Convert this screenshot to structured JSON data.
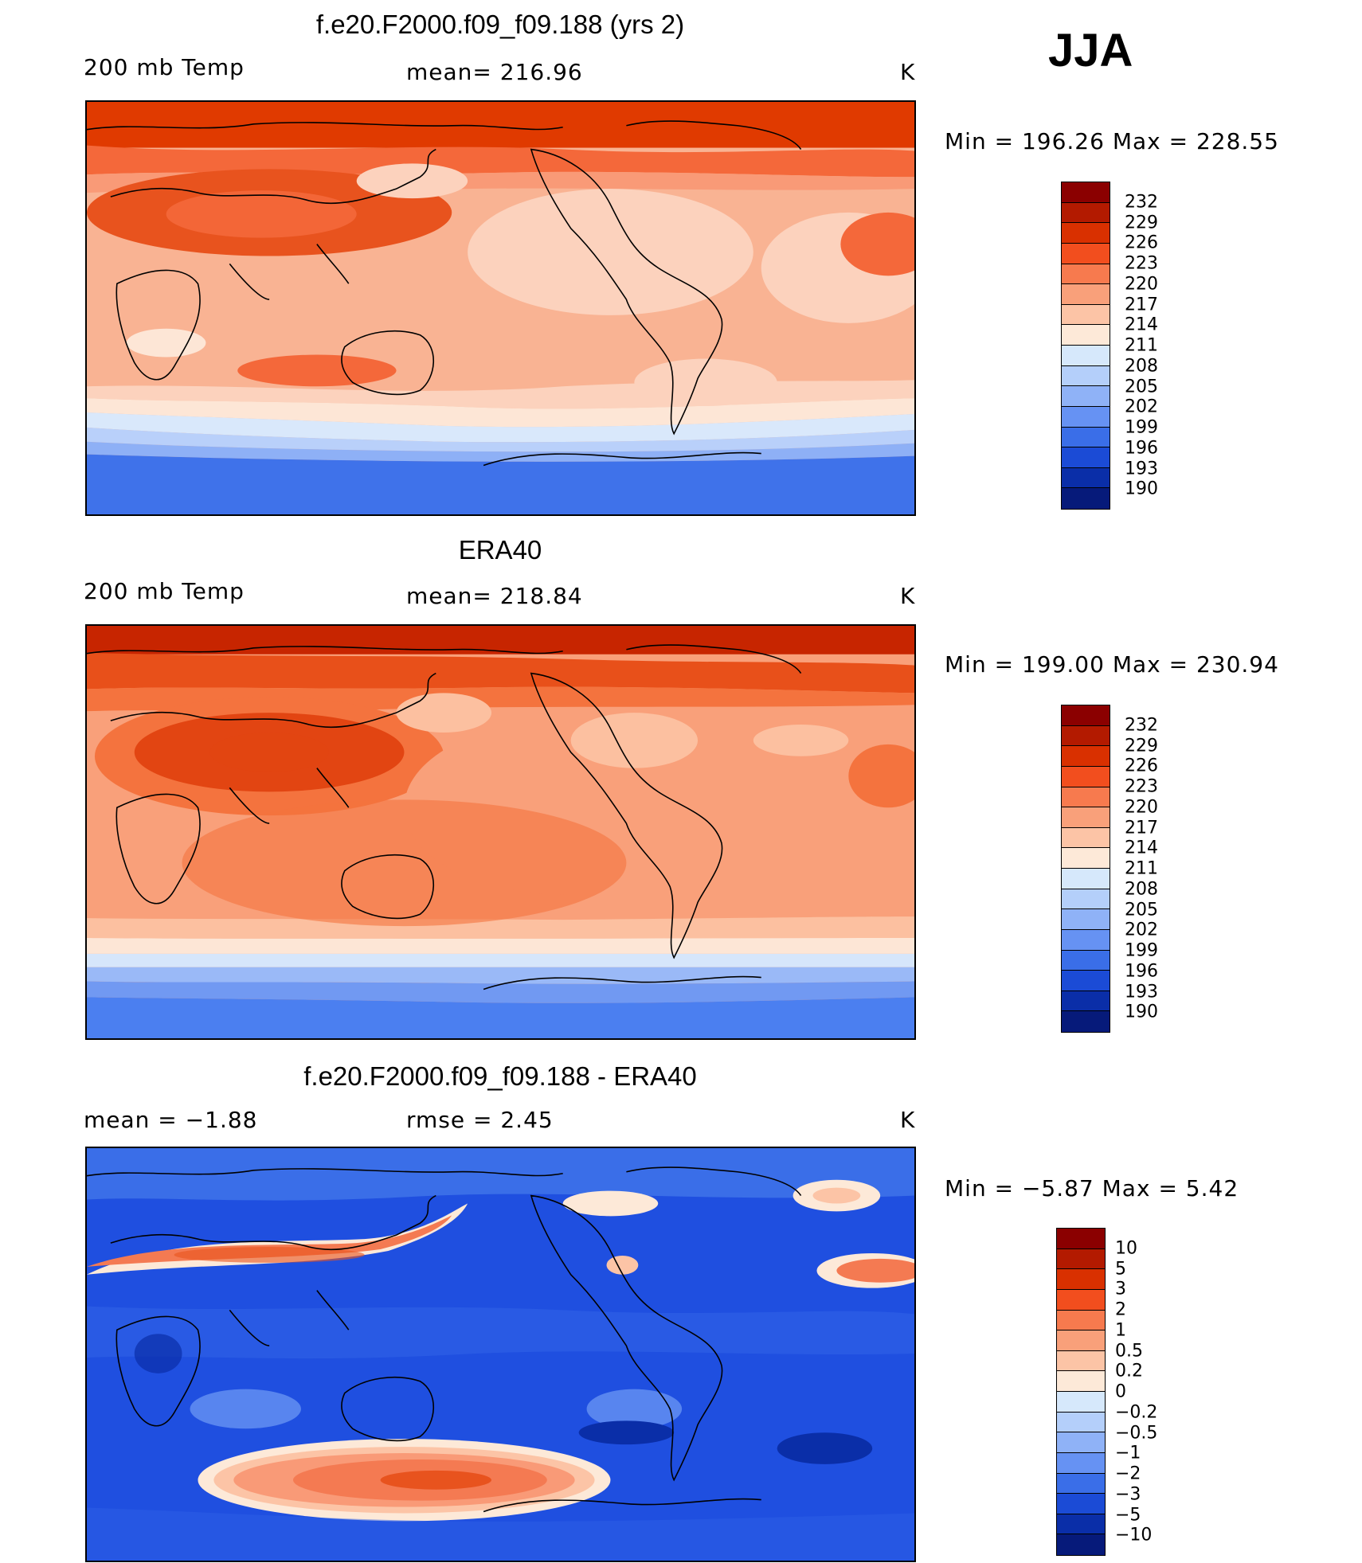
{
  "season": "JJA",
  "panels": [
    {
      "title": "f.e20.F2000.f09_f09.188 (yrs 2)",
      "left": "200 mb Temp",
      "center": "mean= 216.96",
      "right": "K",
      "minmax": "Min = 196.26 Max = 228.55",
      "colorbar": {
        "labels": [
          "232",
          "229",
          "226",
          "223",
          "220",
          "217",
          "214",
          "211",
          "208",
          "205",
          "202",
          "199",
          "196",
          "193",
          "190"
        ],
        "colors": [
          "#8b0000",
          "#b31a00",
          "#d93000",
          "#f24e1e",
          "#f77a4e",
          "#f9a07a",
          "#fcc4a6",
          "#fde9d8",
          "#d6e8fb",
          "#b4cffa",
          "#8fb2f7",
          "#6692f3",
          "#3a6ee8",
          "#1b4bd6",
          "#0a2ea8",
          "#061a7a"
        ]
      },
      "field": {
        "background": "#f9b393",
        "bands": [
          {
            "color": "#e03a00"
          },
          {
            "color": "#f4683a"
          },
          {
            "color": "#f99a77"
          },
          {
            "color": "#f9b393"
          },
          {
            "color": "#fcd2bd"
          },
          {
            "color": "#f9b393"
          },
          {
            "color": "#fde6d6"
          },
          {
            "color": "#d9e8fb"
          },
          {
            "color": "#b9d0fa"
          },
          {
            "color": "#8eb0f6"
          },
          {
            "color": "#3f72ea"
          },
          {
            "color": "#2f5fe8"
          }
        ],
        "blobs": [
          {
            "color": "#e8531e"
          },
          {
            "color": "#e8531e"
          },
          {
            "color": "#fcd2bd"
          },
          {
            "color": "#fde6d6"
          },
          {
            "color": "#f4683a"
          },
          {
            "color": "#f4683a"
          },
          {
            "color": "#fcd2bd"
          },
          {
            "color": "#f4683a"
          }
        ]
      }
    },
    {
      "title": "ERA40",
      "left": "200 mb Temp",
      "center": "mean= 218.84",
      "right": "K",
      "minmax": "Min = 199.00 Max = 230.94",
      "colorbar": {
        "labels": [
          "232",
          "229",
          "226",
          "223",
          "220",
          "217",
          "214",
          "211",
          "208",
          "205",
          "202",
          "199",
          "196",
          "193",
          "190"
        ],
        "colors": [
          "#8b0000",
          "#b31a00",
          "#d93000",
          "#f24e1e",
          "#f77a4e",
          "#f9a07a",
          "#fcc4a6",
          "#fde9d8",
          "#d6e8fb",
          "#b4cffa",
          "#8fb2f7",
          "#6692f3",
          "#3a6ee8",
          "#1b4bd6",
          "#0a2ea8",
          "#061a7a"
        ]
      },
      "field": {
        "background": "#f9a07a",
        "bands": [
          {
            "color": "#c72500"
          },
          {
            "color": "#e8501a"
          },
          {
            "color": "#f4733e"
          },
          {
            "color": "#f9a07a"
          },
          {
            "color": "#f9a07a"
          },
          {
            "color": "#fcc0a0"
          },
          {
            "color": "#fde6d6"
          },
          {
            "color": "#d6e6fb"
          },
          {
            "color": "#9ab9f7"
          },
          {
            "color": "#7199f2"
          },
          {
            "color": "#4b7ff0"
          },
          {
            "color": "#4b7ff0"
          }
        ],
        "blobs": [
          {
            "color": "#e24512"
          },
          {
            "color": "#f4733e"
          },
          {
            "color": "#fcc0a0"
          },
          {
            "color": "#f4733e"
          },
          {
            "color": "#fcc0a0"
          },
          {
            "color": "#f9a07a"
          },
          {
            "color": "#f4733e"
          },
          {
            "color": "#fcc0a0"
          }
        ]
      }
    },
    {
      "title": "f.e20.F2000.f09_f09.188 - ERA40",
      "left": "mean = −1.88",
      "center": "rmse = 2.45",
      "right": "K",
      "minmax": "Min = −5.87 Max = 5.42",
      "colorbar": {
        "labels": [
          "10",
          "5",
          "3",
          "2",
          "1",
          "0.5",
          "0.2",
          "0",
          "−0.2",
          "−0.5",
          "−1",
          "−2",
          "−3",
          "−5",
          "−10"
        ],
        "colors": [
          "#8b0000",
          "#b31a00",
          "#d93000",
          "#f24e1e",
          "#f77a4e",
          "#f9a07a",
          "#fcc4a6",
          "#fde9d8",
          "#d6e8fb",
          "#b4cffa",
          "#8fb2f7",
          "#6692f3",
          "#3a6ee8",
          "#1b4bd6",
          "#0a2ea8",
          "#061a7a"
        ]
      },
      "field": {
        "background": "#1f4fe0",
        "bands": [
          {
            "color": "#3a6ee8"
          },
          {
            "color": "#2e5fe6"
          }
        ],
        "blobs": [
          {
            "color": "#f47a52"
          },
          {
            "color": "#f47a52"
          },
          {
            "color": "#e8531e"
          },
          {
            "color": "#fde9d8"
          },
          {
            "color": "#fcc4a6"
          },
          {
            "color": "#f99a77"
          },
          {
            "color": "#6692f3"
          },
          {
            "color": "#0a2ea8"
          },
          {
            "color": "#fde9d8"
          },
          {
            "color": "#f47a52"
          }
        ]
      }
    }
  ]
}
